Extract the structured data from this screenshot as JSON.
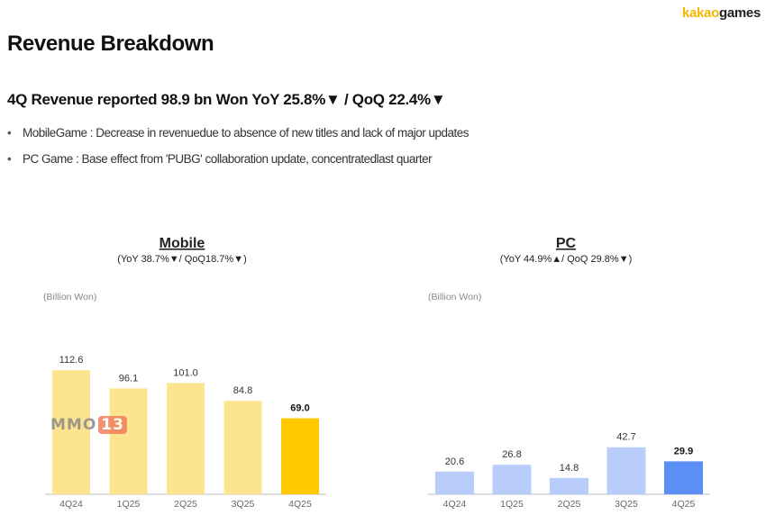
{
  "header": {
    "logo_kakao": "kakao",
    "logo_games": "games",
    "title": "Revenue Breakdown"
  },
  "summary": {
    "headline": "4Q Revenue reported 98.9 bn Won YoY 25.8%▼ / QoQ 22.4%▼",
    "bullets": [
      "MobileGame : Decrease in revenuedue to absence of new titles and lack of major updates",
      "PC Game : Base effect from 'PUBG' collaboration update, concentratedlast quarter"
    ]
  },
  "watermark": {
    "part1": "MMO",
    "part2": "13"
  },
  "chart_data": [
    {
      "type": "bar",
      "title": "Mobile",
      "subtitle": "(YoY 38.7%▼/ QoQ18.7%▼)",
      "unit": "(Billion Won)",
      "categories": [
        "4Q24",
        "1Q25",
        "2Q25",
        "3Q25",
        "4Q25"
      ],
      "values": [
        112.6,
        96.1,
        101.0,
        84.8,
        69.0
      ],
      "labels": [
        "112.6",
        "96.1",
        "101.0",
        "84.8",
        "69.0"
      ],
      "colors": [
        "#fde58f",
        "#fde58f",
        "#fde58f",
        "#fde58f",
        "#ffc800"
      ],
      "highlight_index": 4,
      "ylim": [
        0,
        125
      ]
    },
    {
      "type": "bar",
      "title": "PC",
      "subtitle": "(YoY 44.9%▲/ QoQ 29.8%▼)",
      "unit": "(Billion Won)",
      "categories": [
        "4Q24",
        "1Q25",
        "2Q25",
        "3Q25",
        "4Q25"
      ],
      "values": [
        20.6,
        26.8,
        14.8,
        42.7,
        29.9
      ],
      "labels": [
        "20.6",
        "26.8",
        "14.8",
        "42.7",
        "29.9"
      ],
      "colors": [
        "#b8cdfb",
        "#b8cdfb",
        "#b8cdfb",
        "#b8cdfb",
        "#5c8ff5"
      ],
      "highlight_index": 4,
      "ylim": [
        0,
        125
      ]
    }
  ]
}
